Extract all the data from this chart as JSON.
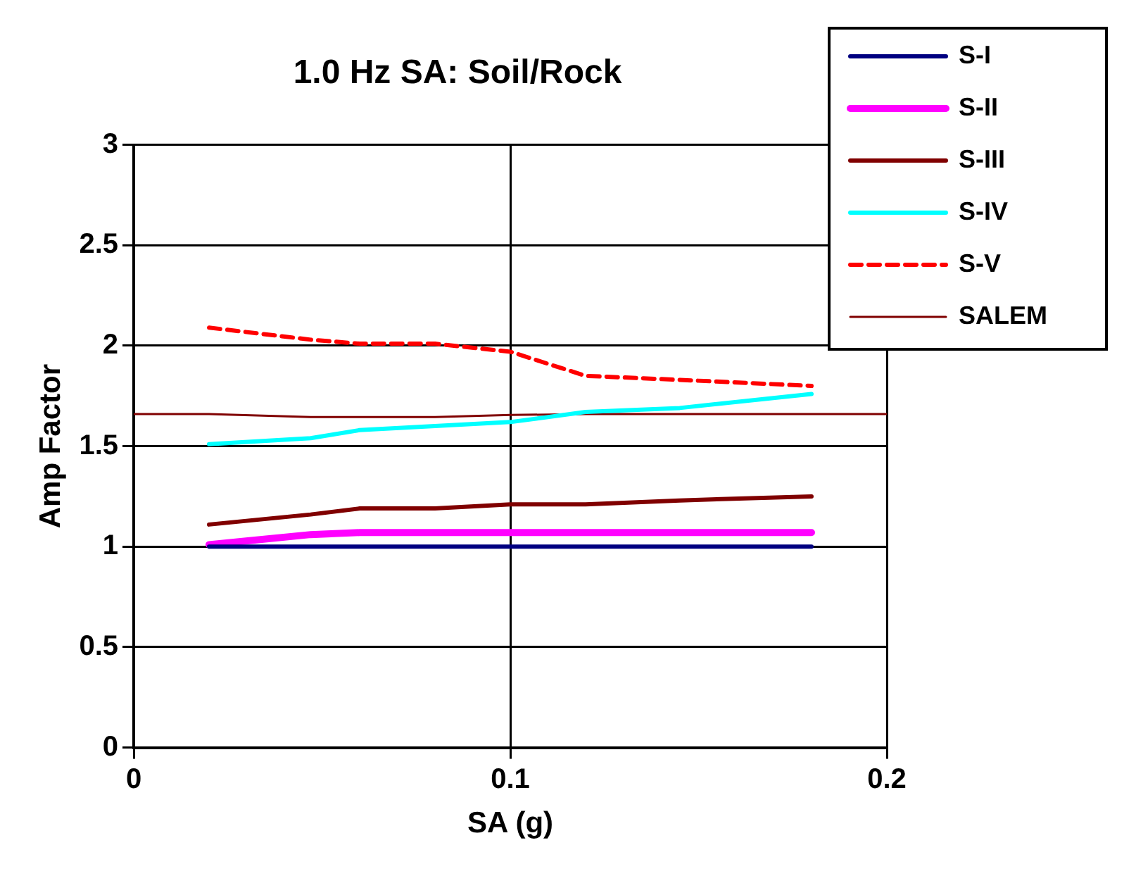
{
  "chart_data": {
    "type": "line",
    "title": "1.0 Hz SA: Soil/Rock",
    "xlabel": "SA (g)",
    "ylabel": "Amp Factor",
    "x": [
      0.02,
      0.047,
      0.06,
      0.08,
      0.1,
      0.12,
      0.145,
      0.18
    ],
    "series": [
      {
        "name": "S-I",
        "color": "#000080",
        "values": [
          1.0,
          1.0,
          1.0,
          1.0,
          1.0,
          1.0,
          1.0,
          1.0
        ]
      },
      {
        "name": "S-II",
        "color": "#ff00ff",
        "values": [
          1.01,
          1.06,
          1.07,
          1.07,
          1.07,
          1.07,
          1.07,
          1.07
        ]
      },
      {
        "name": "S-III",
        "color": "#800000",
        "values": [
          1.11,
          1.16,
          1.19,
          1.19,
          1.21,
          1.21,
          1.23,
          1.25
        ]
      },
      {
        "name": "S-IV",
        "color": "#00ffff",
        "values": [
          1.51,
          1.54,
          1.58,
          1.6,
          1.62,
          1.67,
          1.69,
          1.76
        ]
      },
      {
        "name": "S-V",
        "color": "#ff0000",
        "line_style": "dashed",
        "values": [
          2.09,
          2.03,
          2.01,
          2.01,
          1.97,
          1.85,
          1.83,
          1.8
        ]
      },
      {
        "name": "SALEM",
        "color": "#800000",
        "x": [
          0,
          0.02,
          0.047,
          0.08,
          0.1,
          0.12,
          0.2
        ],
        "values": [
          1.66,
          1.66,
          1.645,
          1.645,
          1.655,
          1.66,
          1.66
        ]
      }
    ],
    "xlim": [
      0,
      0.2
    ],
    "xticks": [
      0,
      0.1,
      0.2
    ],
    "ylim": [
      0,
      3
    ],
    "yticks": [
      0,
      0.5,
      1,
      1.5,
      2,
      2.5,
      3
    ],
    "grid": true,
    "legend": "top right",
    "marker": "none",
    "line_style": "solid"
  }
}
